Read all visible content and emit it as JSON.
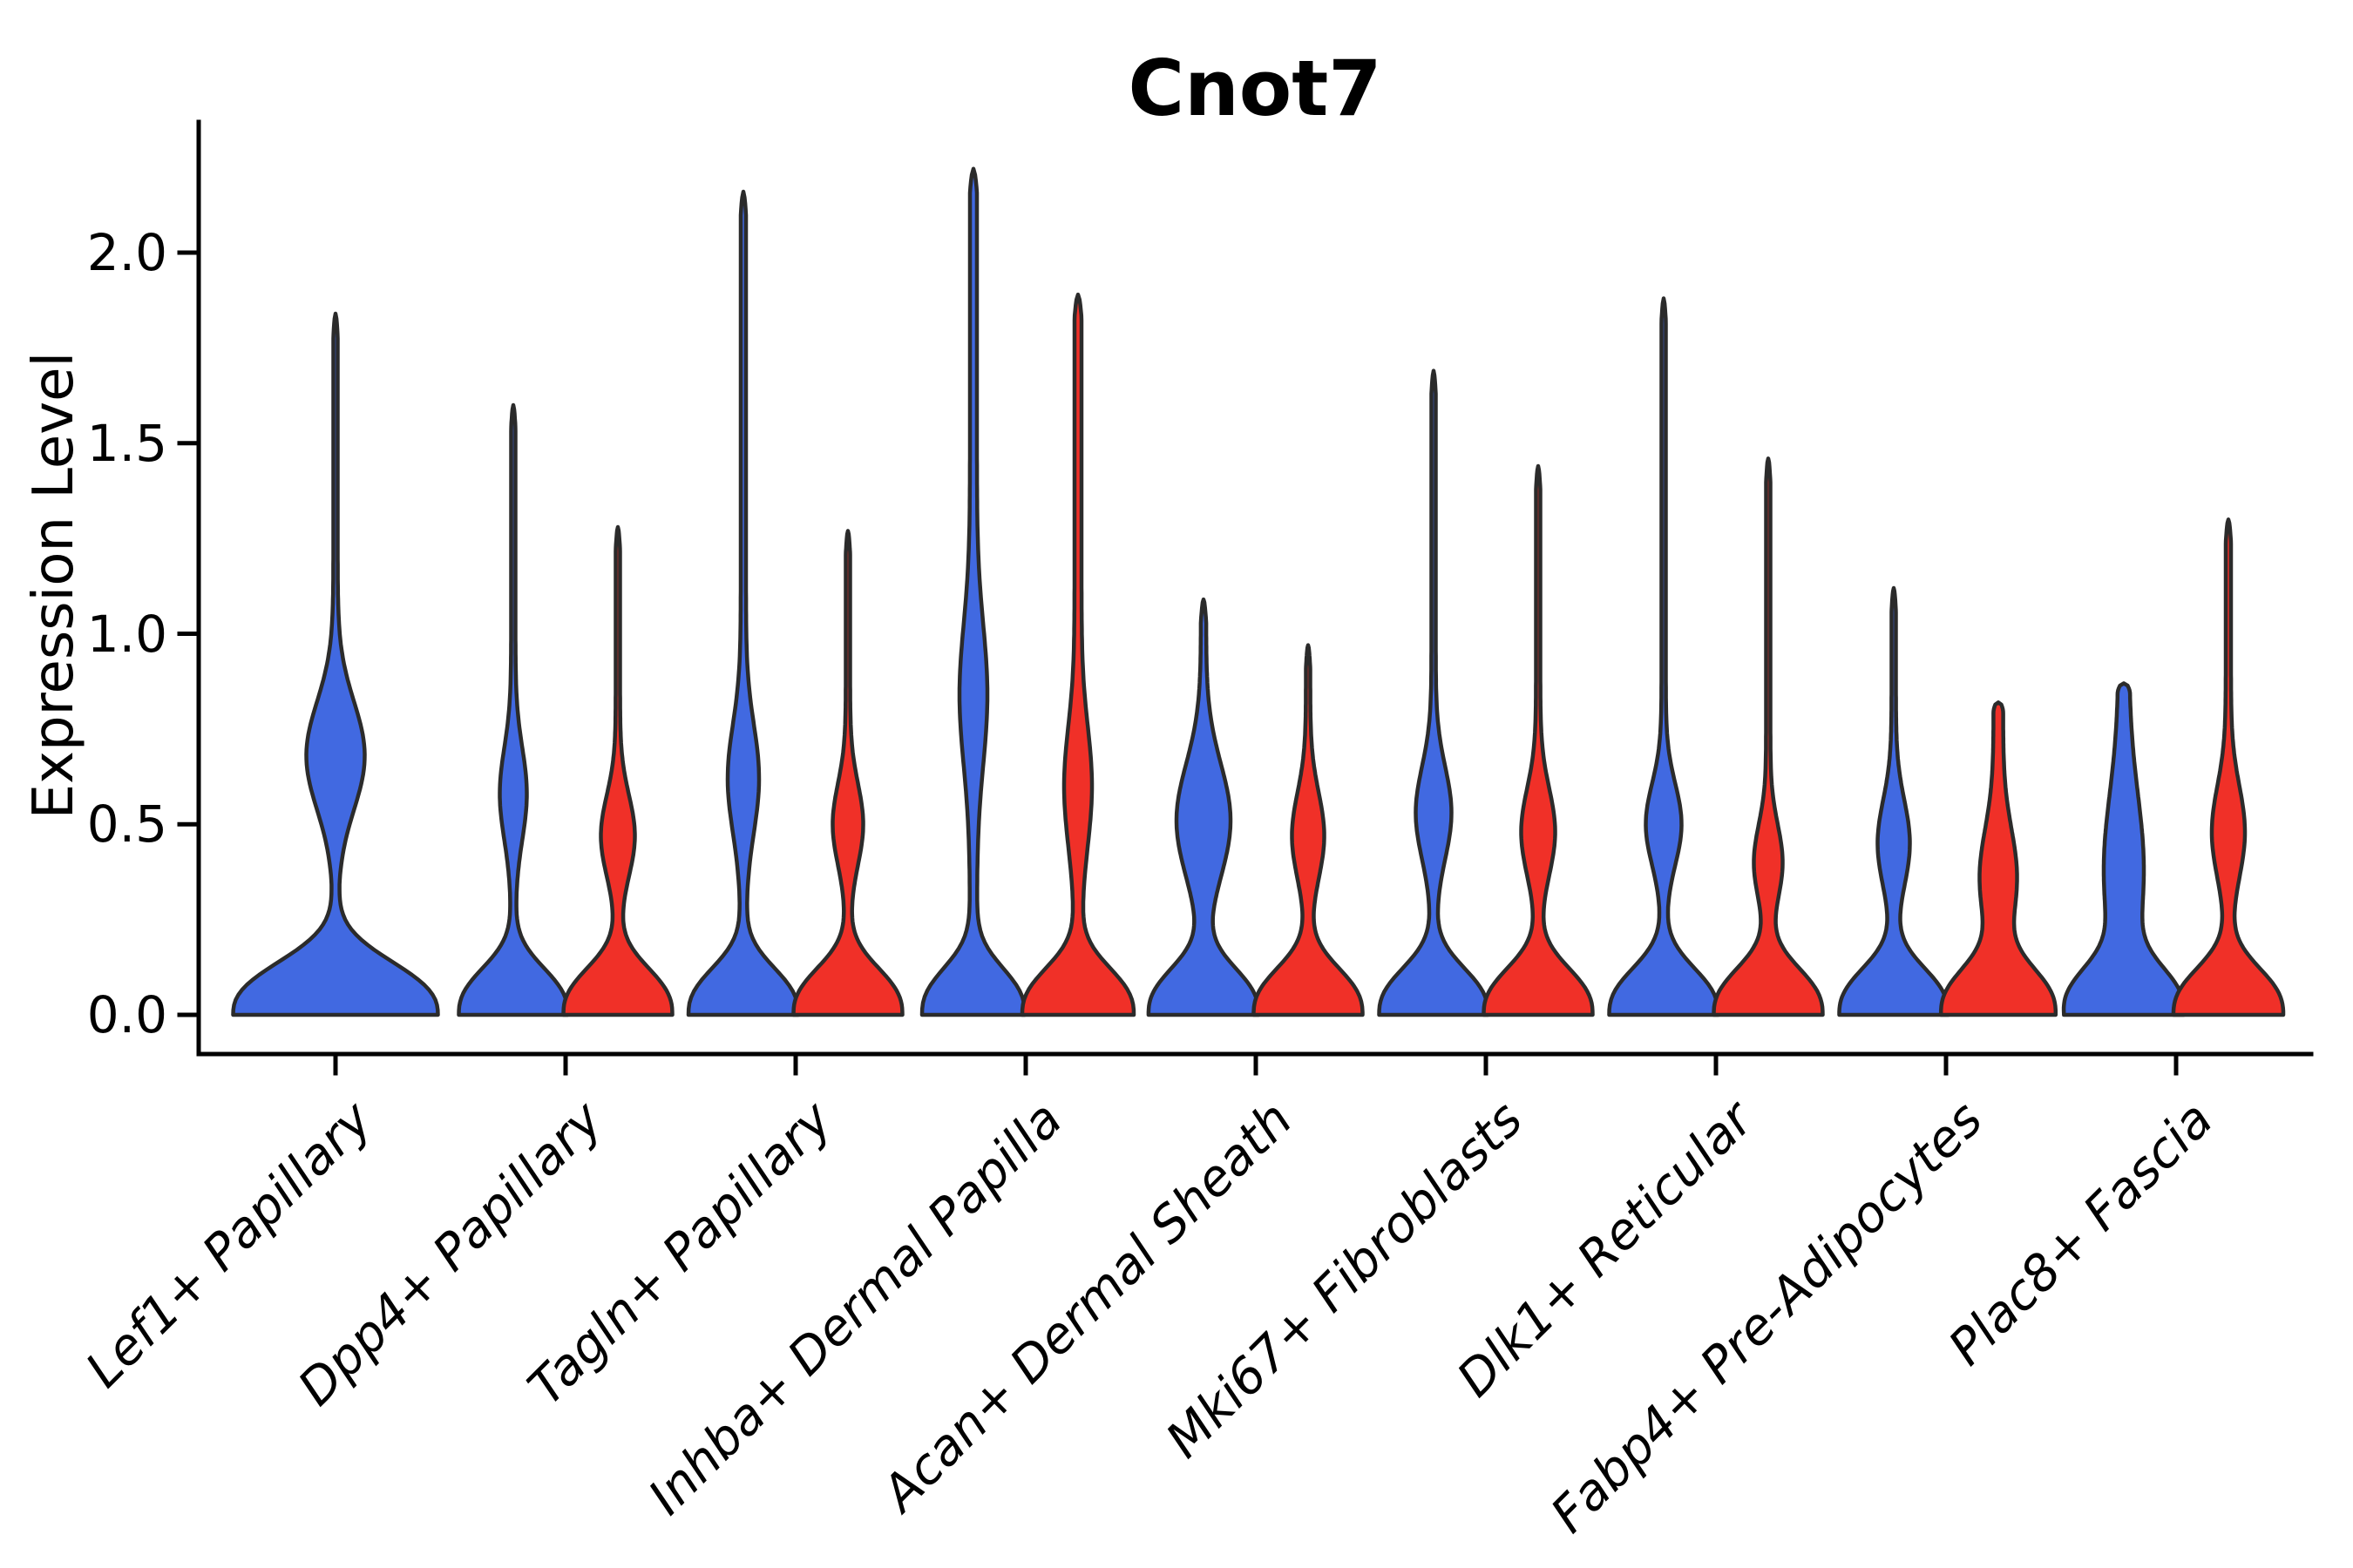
{
  "title": "Cnot7",
  "axes": {
    "ylabel": "Expression Level",
    "ytick_labels": [
      "0.0",
      "0.5",
      "1.0",
      "1.5",
      "2.0"
    ]
  },
  "colors": {
    "blue_series": "#4169E1",
    "red_series": "#F03028",
    "violin_outline": "#2B2B2B",
    "axis": "#000000",
    "background": "#ffffff"
  },
  "chart_data": {
    "type": "violin",
    "title": "Cnot7",
    "xlabel": "",
    "ylabel": "Expression Level",
    "ylim": [
      -0.1,
      2.34
    ],
    "yticks": [
      0.0,
      0.5,
      1.0,
      1.5,
      2.0
    ],
    "grid": false,
    "legend": "none",
    "categories": [
      "Lef1+ Papillary",
      "Dpp4+ Papillary",
      "Tagln+ Papillary",
      "Inhba+ Dermal Papilla",
      "Acan+ Dermal Sheath",
      "Mki67+ Fibroblasts",
      "Dlk1+ Reticular",
      "Fabp4+ Pre-Adipocytes",
      "Plac8+ Fascia"
    ],
    "series": [
      {
        "name": "blue",
        "color": "#4169E1",
        "max_expression": [
          1.84,
          1.6,
          2.16,
          2.22,
          1.09,
          1.69,
          1.88,
          1.12,
          0.87
        ]
      },
      {
        "name": "red",
        "color": "#F03028",
        "max_expression": [
          null,
          1.28,
          1.27,
          1.89,
          0.97,
          1.44,
          1.46,
          0.82,
          1.3
        ]
      }
    ],
    "violins": [
      {
        "category": 0,
        "series": "blue",
        "solo": true,
        "tip": 1.84,
        "bulge_center": 0.68,
        "bulge_halfwidth": 31,
        "bulge_sigma": 0.2,
        "base_halfwidth": 115,
        "base_falloff": 0.17,
        "stem_halfwidth": 2.5,
        "blunt_top": false
      },
      {
        "category": 1,
        "series": "blue",
        "solo": false,
        "tip": 1.6,
        "bulge_center": 0.58,
        "bulge_halfwidth": 13,
        "bulge_sigma": 0.17,
        "base_halfwidth": 60,
        "base_falloff": 0.15,
        "stem_halfwidth": 2.5,
        "blunt_top": false
      },
      {
        "category": 1,
        "series": "red",
        "solo": false,
        "tip": 1.28,
        "bulge_center": 0.47,
        "bulge_halfwidth": 17,
        "bulge_sigma": 0.15,
        "base_halfwidth": 60,
        "base_falloff": 0.15,
        "stem_halfwidth": 2.5,
        "blunt_top": false
      },
      {
        "category": 2,
        "series": "blue",
        "solo": false,
        "tip": 2.16,
        "bulge_center": 0.62,
        "bulge_halfwidth": 15,
        "bulge_sigma": 0.2,
        "base_halfwidth": 60,
        "base_falloff": 0.15,
        "stem_halfwidth": 3,
        "blunt_top": false
      },
      {
        "category": 2,
        "series": "red",
        "solo": false,
        "tip": 1.27,
        "bulge_center": 0.5,
        "bulge_halfwidth": 15,
        "bulge_sigma": 0.15,
        "base_halfwidth": 60,
        "base_falloff": 0.15,
        "stem_halfwidth": 2.5,
        "blunt_top": false
      },
      {
        "category": 3,
        "series": "blue",
        "solo": false,
        "tip": 2.22,
        "bulge_center": 0.84,
        "bulge_halfwidth": 12,
        "bulge_sigma": 0.26,
        "base_halfwidth": 55,
        "base_falloff": 0.15,
        "stem_halfwidth": 4,
        "blunt_top": false
      },
      {
        "category": 3,
        "series": "red",
        "solo": false,
        "tip": 1.89,
        "bulge_center": 0.6,
        "bulge_halfwidth": 12,
        "bulge_sigma": 0.22,
        "base_halfwidth": 60,
        "base_falloff": 0.15,
        "stem_halfwidth": 4,
        "blunt_top": false
      },
      {
        "category": 4,
        "series": "blue",
        "solo": false,
        "tip": 1.09,
        "bulge_center": 0.51,
        "bulge_halfwidth": 28,
        "bulge_sigma": 0.21,
        "base_halfwidth": 60,
        "base_falloff": 0.15,
        "stem_halfwidth": 3,
        "blunt_top": false
      },
      {
        "category": 4,
        "series": "red",
        "solo": false,
        "tip": 0.97,
        "bulge_center": 0.47,
        "bulge_halfwidth": 16,
        "bulge_sigma": 0.16,
        "base_halfwidth": 60,
        "base_falloff": 0.15,
        "stem_halfwidth": 2.5,
        "blunt_top": false
      },
      {
        "category": 5,
        "series": "blue",
        "solo": false,
        "tip": 1.69,
        "bulge_center": 0.53,
        "bulge_halfwidth": 18,
        "bulge_sigma": 0.17,
        "base_halfwidth": 60,
        "base_falloff": 0.15,
        "stem_halfwidth": 2.5,
        "blunt_top": false
      },
      {
        "category": 5,
        "series": "red",
        "solo": false,
        "tip": 1.44,
        "bulge_center": 0.48,
        "bulge_halfwidth": 17,
        "bulge_sigma": 0.16,
        "base_halfwidth": 60,
        "base_falloff": 0.15,
        "stem_halfwidth": 2.5,
        "blunt_top": false
      },
      {
        "category": 6,
        "series": "blue",
        "solo": false,
        "tip": 1.88,
        "bulge_center": 0.5,
        "bulge_halfwidth": 18,
        "bulge_sigma": 0.15,
        "base_halfwidth": 60,
        "base_falloff": 0.15,
        "stem_halfwidth": 2.5,
        "blunt_top": false
      },
      {
        "category": 6,
        "series": "red",
        "solo": false,
        "tip": 1.46,
        "bulge_center": 0.4,
        "bulge_halfwidth": 14,
        "bulge_sigma": 0.14,
        "base_halfwidth": 60,
        "base_falloff": 0.15,
        "stem_halfwidth": 2.5,
        "blunt_top": false
      },
      {
        "category": 7,
        "series": "blue",
        "solo": false,
        "tip": 1.12,
        "bulge_center": 0.45,
        "bulge_halfwidth": 16,
        "bulge_sigma": 0.16,
        "base_halfwidth": 60,
        "base_falloff": 0.15,
        "stem_halfwidth": 2.5,
        "blunt_top": false
      },
      {
        "category": 7,
        "series": "red",
        "solo": false,
        "tip": 0.82,
        "bulge_center": 0.36,
        "bulge_halfwidth": 16,
        "bulge_sigma": 0.18,
        "base_halfwidth": 60,
        "base_falloff": 0.15,
        "stem_halfwidth": 5.5,
        "blunt_top": true
      },
      {
        "category": 8,
        "series": "blue",
        "solo": false,
        "tip": 0.87,
        "bulge_center": 0.38,
        "bulge_halfwidth": 17,
        "bulge_sigma": 0.28,
        "base_halfwidth": 60,
        "base_falloff": 0.15,
        "stem_halfwidth": 6,
        "blunt_top": true
      },
      {
        "category": 8,
        "series": "red",
        "solo": false,
        "tip": 1.3,
        "bulge_center": 0.48,
        "bulge_halfwidth": 16,
        "bulge_sigma": 0.17,
        "base_halfwidth": 60,
        "base_falloff": 0.15,
        "stem_halfwidth": 3,
        "blunt_top": false
      }
    ]
  }
}
